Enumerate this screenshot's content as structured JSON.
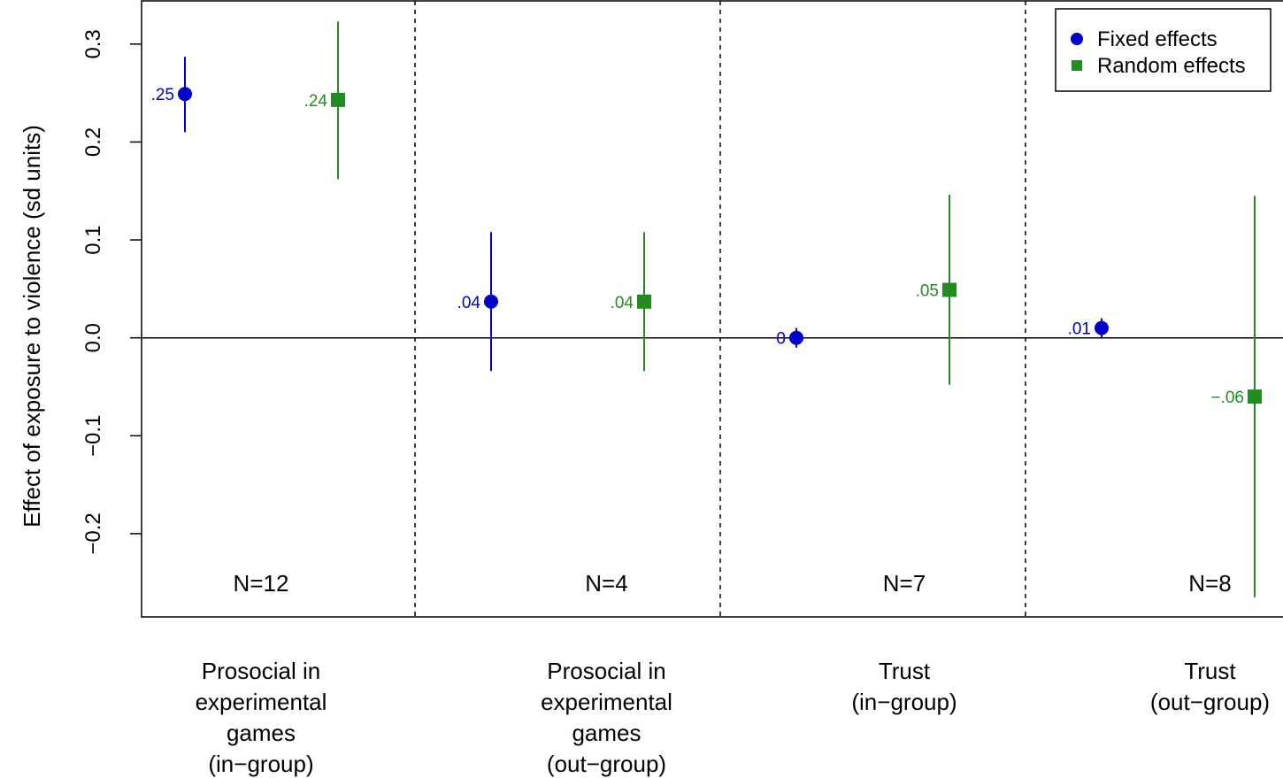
{
  "chart_data": {
    "type": "scatter",
    "ylabel": "Effect of exposure to violence (sd units)",
    "ylim": [
      -0.285,
      0.345
    ],
    "yticks": [
      {
        "value": -0.2,
        "label": "−0.2"
      },
      {
        "value": -0.1,
        "label": "−0.1"
      },
      {
        "value": 0.0,
        "label": "0.0"
      },
      {
        "value": 0.1,
        "label": "0.1"
      },
      {
        "value": 0.2,
        "label": "0.2"
      },
      {
        "value": 0.3,
        "label": "0.3"
      }
    ],
    "reference_line": 0,
    "legend": {
      "position": "top-right"
    },
    "groups": [
      {
        "lines": [
          "Prosocial in",
          "experimental",
          "games",
          "(in−group)"
        ],
        "n_label": "N=12"
      },
      {
        "lines": [
          "Prosocial in",
          "experimental",
          "games",
          "(out−group)"
        ],
        "n_label": "N=4"
      },
      {
        "lines": [
          "Trust",
          "(in−group)"
        ],
        "n_label": "N=7"
      },
      {
        "lines": [
          "Trust",
          "(out−group)"
        ],
        "n_label": "N=8"
      }
    ],
    "series": [
      {
        "name": "Fixed effects",
        "color": "#0000cc",
        "marker": "circle",
        "points": [
          {
            "value": 0.249,
            "lower": 0.21,
            "upper": 0.287,
            "label": ".25"
          },
          {
            "value": 0.037,
            "lower": -0.034,
            "upper": 0.108,
            "label": ".04"
          },
          {
            "value": 0.0,
            "lower": -0.01,
            "upper": 0.01,
            "label": "0"
          },
          {
            "value": 0.01,
            "lower": 0.0,
            "upper": 0.02,
            "label": ".01"
          }
        ]
      },
      {
        "name": "Random effects",
        "color": "#228b22",
        "marker": "square",
        "points": [
          {
            "value": 0.243,
            "lower": 0.162,
            "upper": 0.323,
            "label": ".24"
          },
          {
            "value": 0.037,
            "lower": -0.034,
            "upper": 0.108,
            "label": ".04"
          },
          {
            "value": 0.049,
            "lower": -0.048,
            "upper": 0.146,
            "label": ".05"
          },
          {
            "value": -0.06,
            "lower": -0.265,
            "upper": 0.145,
            "label": "−.06"
          }
        ]
      }
    ]
  }
}
